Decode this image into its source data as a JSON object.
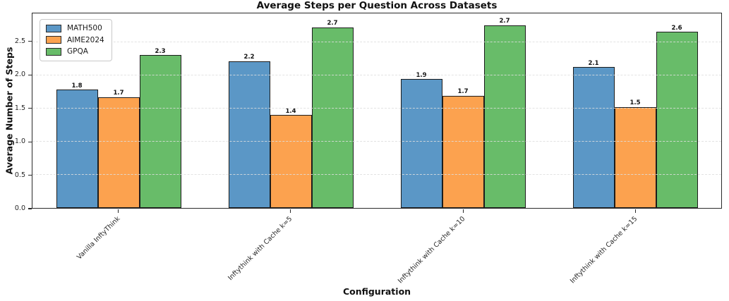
{
  "chart_data": {
    "type": "bar",
    "title": "Average Steps per Question Across Datasets",
    "xlabel": "Configuration",
    "ylabel": "Average Number of Steps",
    "categories": [
      "Vanilla InftyThink",
      "Inftythink with Cache k=5",
      "Inftythink with Cache k=10",
      "Inftythink with Cache k=15"
    ],
    "series": [
      {
        "name": "MATH500",
        "color": "#5b97c6",
        "values": [
          1.8,
          2.2,
          1.9,
          2.1
        ],
        "bar_heights": [
          1.78,
          2.21,
          1.94,
          2.12
        ]
      },
      {
        "name": "AIME2024",
        "color": "#fca24f",
        "values": [
          1.7,
          1.4,
          1.7,
          1.5
        ],
        "bar_heights": [
          1.67,
          1.4,
          1.69,
          1.52
        ]
      },
      {
        "name": "GPQA",
        "color": "#68bc69",
        "values": [
          2.3,
          2.7,
          2.7,
          2.6
        ],
        "bar_heights": [
          2.3,
          2.72,
          2.75,
          2.65
        ]
      }
    ],
    "yticks": [
      "0.0",
      "0.5",
      "1.0",
      "1.5",
      "2.0",
      "2.5"
    ],
    "ylim": [
      0,
      2.93
    ],
    "grid": "horizontal-dashed",
    "legend_position": "upper-left",
    "bar_edge_color": "#1c1c1c"
  }
}
